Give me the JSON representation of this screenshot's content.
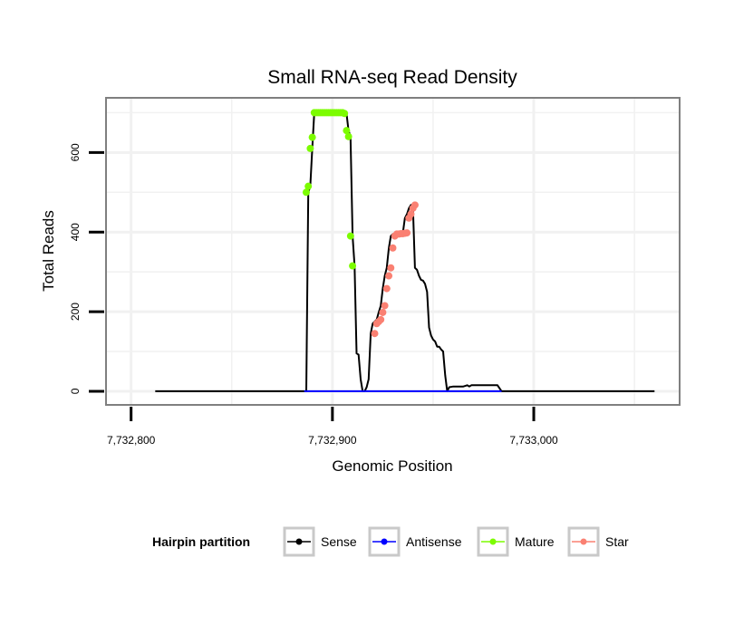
{
  "chart_data": {
    "type": "line",
    "title": "Small RNA-seq Read Density",
    "xlabel": "Genomic Position",
    "ylabel": "Total Reads",
    "xlim": [
      7732788,
      7733072
    ],
    "ylim": [
      -32,
      735
    ],
    "x_ticks": [
      {
        "value": 7732800,
        "label": "7,732,800"
      },
      {
        "value": 7732900,
        "label": "7,732,900"
      },
      {
        "value": 7733000,
        "label": "7,733,000"
      }
    ],
    "y_ticks": [
      {
        "value": 0,
        "label": "0"
      },
      {
        "value": 200,
        "label": "200"
      },
      {
        "value": 400,
        "label": "400"
      },
      {
        "value": 600,
        "label": "600"
      }
    ],
    "grid": true,
    "legend": {
      "title": "Hairpin partition",
      "position": "bottom",
      "entries": [
        "Sense",
        "Antisense",
        "Mature",
        "Star"
      ]
    },
    "series": [
      {
        "name": "Sense",
        "color": "#000000",
        "x": [
          7732812,
          7732886,
          7732887,
          7732888,
          7732889,
          7732890,
          7732891,
          7732892,
          7732893,
          7732894,
          7732895,
          7732896,
          7732897,
          7732898,
          7732899,
          7732900,
          7732901,
          7732902,
          7732903,
          7732904,
          7732905,
          7732906,
          7732907,
          7732908,
          7732909,
          7732910,
          7732911,
          7732912,
          7732913,
          7732914,
          7732915,
          7732916,
          7732917,
          7732918,
          7732919,
          7732920,
          7732921,
          7732922,
          7732923,
          7732924,
          7732925,
          7732926,
          7732927,
          7732928,
          7732929,
          7732930,
          7732931,
          7732932,
          7732933,
          7732934,
          7732935,
          7732936,
          7732937,
          7732938,
          7732939,
          7732940,
          7732941,
          7732942,
          7732943,
          7732944,
          7732945,
          7732946,
          7732947,
          7732948,
          7732949,
          7732950,
          7732951,
          7732952,
          7732953,
          7732954,
          7732955,
          7732956,
          7732957,
          7732958,
          7732960,
          7732962,
          7732965,
          7732967,
          7732968,
          7732969,
          7732975,
          7732982,
          7732984,
          7733060
        ],
        "values": [
          0,
          0,
          0,
          500,
          515,
          610,
          700,
          700,
          700,
          700,
          700,
          700,
          700,
          700,
          700,
          700,
          700,
          700,
          700,
          700,
          700,
          700,
          698,
          655,
          640,
          390,
          315,
          95,
          92,
          30,
          0,
          0,
          10,
          30,
          145,
          170,
          175,
          180,
          198,
          215,
          258,
          290,
          310,
          360,
          390,
          395,
          395,
          396,
          396,
          397,
          398,
          435,
          445,
          460,
          468,
          462,
          310,
          305,
          290,
          280,
          278,
          270,
          250,
          160,
          140,
          130,
          125,
          112,
          112,
          105,
          100,
          40,
          0,
          10,
          12,
          12,
          12,
          15,
          12,
          15,
          15,
          15,
          0,
          0
        ]
      },
      {
        "name": "Antisense",
        "color": "#0000ff",
        "x": [
          7732886,
          7732984
        ],
        "values": [
          0,
          0
        ]
      },
      {
        "name": "Mature",
        "color": "#7cfc00",
        "x": [
          7732887,
          7732888,
          7732889,
          7732890,
          7732891,
          7732892,
          7732893,
          7732894,
          7732895,
          7732896,
          7732897,
          7732898,
          7732899,
          7732900,
          7732901,
          7732902,
          7732903,
          7732904,
          7732905,
          7732906,
          7732907,
          7732908,
          7732909,
          7732910
        ],
        "values": [
          500,
          515,
          610,
          638,
          700,
          700,
          700,
          700,
          700,
          700,
          700,
          700,
          700,
          700,
          700,
          700,
          700,
          700,
          700,
          698,
          655,
          640,
          390,
          315
        ]
      },
      {
        "name": "Star",
        "color": "#fa8072",
        "x": [
          7732921,
          7732922,
          7732923,
          7732924,
          7732925,
          7732926,
          7732927,
          7732928,
          7732929,
          7732930,
          7732931,
          7732932,
          7732933,
          7732934,
          7732935,
          7732936,
          7732937,
          7732938,
          7732939,
          7732940,
          7732941
        ],
        "values": [
          145,
          170,
          175,
          180,
          198,
          215,
          258,
          290,
          310,
          360,
          390,
          395,
          395,
          396,
          396,
          397,
          398,
          435,
          445,
          460,
          468
        ]
      }
    ]
  }
}
